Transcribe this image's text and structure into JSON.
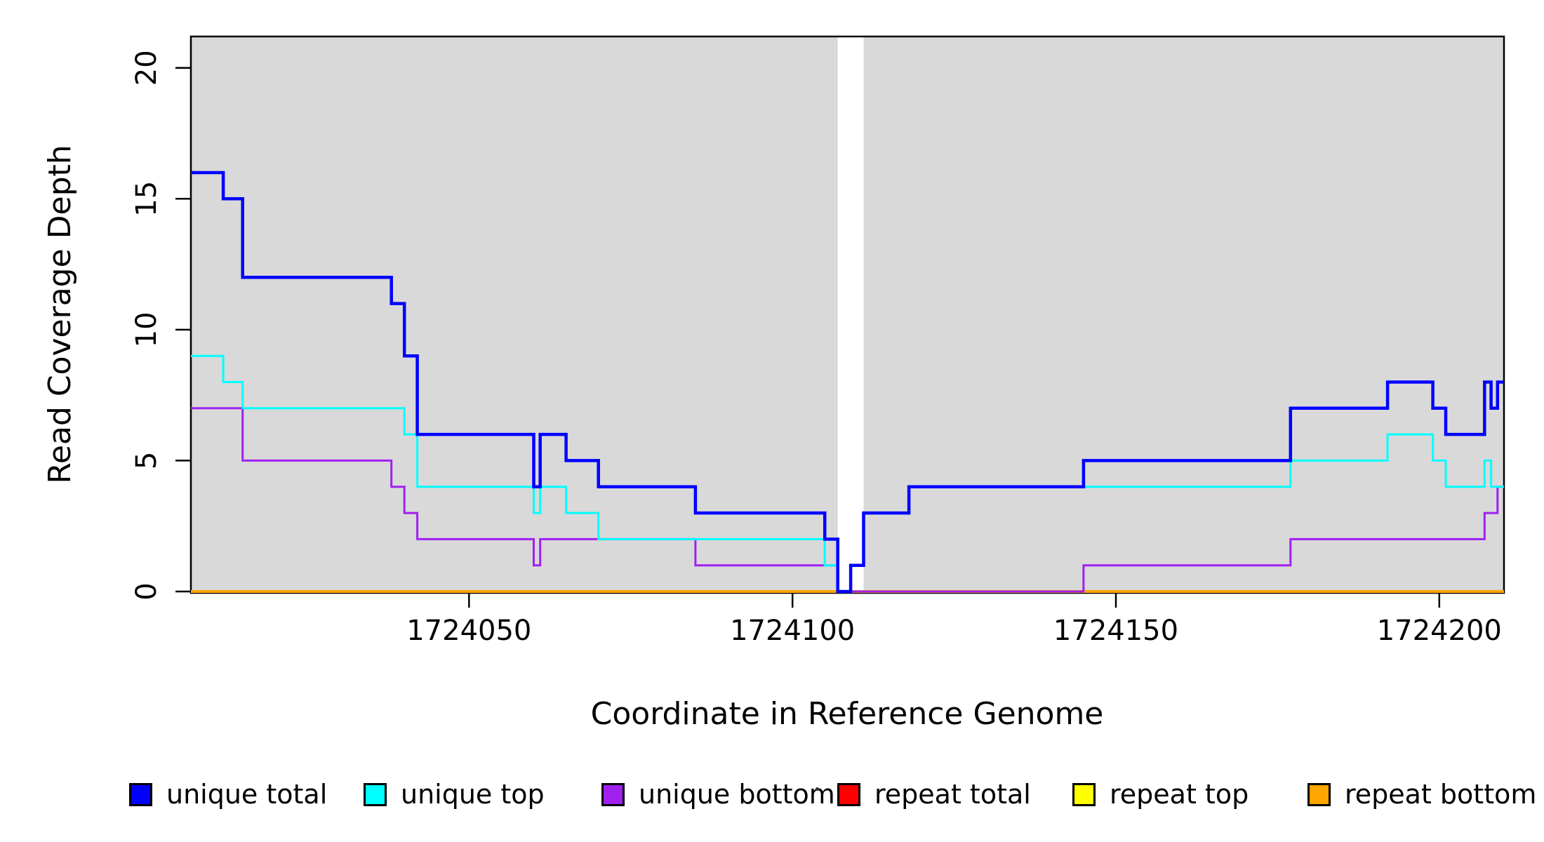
{
  "figure": {
    "background": "#FFFFFF",
    "plot_background": "#FFFFFF",
    "shaded_region_color": "#D9D9D9"
  },
  "x_axis": {
    "label": "Coordinate in Reference Genome",
    "tick_labels": [
      "1724050",
      "1724100",
      "1724150",
      "1724200"
    ]
  },
  "y_axis": {
    "label": "Read Coverage Depth",
    "tick_labels": [
      "0",
      "5",
      "10",
      "15",
      "20"
    ]
  },
  "legend": {
    "items": [
      {
        "label": "unique total",
        "color": "#0000FF"
      },
      {
        "label": "unique top",
        "color": "#00FFFF"
      },
      {
        "label": "unique bottom",
        "color": "#A020F0"
      },
      {
        "label": "repeat total",
        "color": "#FF0000"
      },
      {
        "label": "repeat top",
        "color": "#FFFF00"
      },
      {
        "label": "repeat bottom",
        "color": "#FFA500"
      }
    ],
    "stray_mark": "."
  },
  "chart_data": {
    "type": "line",
    "subtype": "step-coverage",
    "title": "",
    "xlabel": "Coordinate in Reference Genome",
    "ylabel": "Read Coverage Depth",
    "xlim": [
      1724007,
      1724210
    ],
    "ylim": [
      0,
      21.2
    ],
    "x_ticks": [
      1724050,
      1724100,
      1724150,
      1724200
    ],
    "y_ticks": [
      0,
      5,
      10,
      15,
      20
    ],
    "grid": false,
    "legend_position": "bottom",
    "shaded_regions": [
      {
        "x0": 1724007,
        "x1": 1724107,
        "color": "#D9D9D9"
      },
      {
        "x0": 1724111,
        "x1": 1724210,
        "color": "#D9D9D9"
      }
    ],
    "gap_region": {
      "x0": 1724107,
      "x1": 1724111,
      "color": "#FFFFFF"
    },
    "series": [
      {
        "name": "repeat total",
        "color": "#FF0000",
        "width": 3,
        "steps": [
          [
            1724007,
            0
          ]
        ]
      },
      {
        "name": "repeat top",
        "color": "#FFFF00",
        "width": 3,
        "steps": [
          [
            1724007,
            0
          ]
        ]
      },
      {
        "name": "repeat bottom",
        "color": "#FFA500",
        "width": 4,
        "steps": [
          [
            1724007,
            0
          ]
        ]
      },
      {
        "name": "unique bottom",
        "color": "#A020F0",
        "width": 3,
        "steps": [
          [
            1724007,
            7
          ],
          [
            1724015,
            5
          ],
          [
            1724038,
            4
          ],
          [
            1724040,
            3
          ],
          [
            1724042,
            2
          ],
          [
            1724060,
            1
          ],
          [
            1724061,
            2
          ],
          [
            1724085,
            1
          ],
          [
            1724107,
            0
          ],
          [
            1724145,
            1
          ],
          [
            1724177,
            2
          ],
          [
            1724207,
            3
          ],
          [
            1724209,
            4
          ]
        ]
      },
      {
        "name": "unique top",
        "color": "#00FFFF",
        "width": 3,
        "steps": [
          [
            1724007,
            9
          ],
          [
            1724012,
            8
          ],
          [
            1724015,
            7
          ],
          [
            1724040,
            6
          ],
          [
            1724042,
            4
          ],
          [
            1724060,
            3
          ],
          [
            1724061,
            4
          ],
          [
            1724065,
            3
          ],
          [
            1724070,
            2
          ],
          [
            1724105,
            1
          ],
          [
            1724107,
            0
          ],
          [
            1724109,
            1
          ],
          [
            1724111,
            3
          ],
          [
            1724118,
            4
          ],
          [
            1724177,
            5
          ],
          [
            1724192,
            6
          ],
          [
            1724199,
            5
          ],
          [
            1724201,
            4
          ],
          [
            1724207,
            5
          ],
          [
            1724208,
            4
          ]
        ]
      },
      {
        "name": "unique total",
        "color": "#0000FF",
        "width": 4.5,
        "steps": [
          [
            1724007,
            16
          ],
          [
            1724012,
            15
          ],
          [
            1724015,
            12
          ],
          [
            1724038,
            11
          ],
          [
            1724040,
            9
          ],
          [
            1724042,
            6
          ],
          [
            1724060,
            4
          ],
          [
            1724061,
            6
          ],
          [
            1724065,
            5
          ],
          [
            1724070,
            4
          ],
          [
            1724085,
            3
          ],
          [
            1724105,
            2
          ],
          [
            1724107,
            0
          ],
          [
            1724109,
            1
          ],
          [
            1724111,
            3
          ],
          [
            1724118,
            4
          ],
          [
            1724145,
            5
          ],
          [
            1724177,
            7
          ],
          [
            1724192,
            8
          ],
          [
            1724199,
            7
          ],
          [
            1724201,
            6
          ],
          [
            1724207,
            8
          ],
          [
            1724208,
            7
          ],
          [
            1724209,
            8
          ]
        ]
      }
    ]
  }
}
